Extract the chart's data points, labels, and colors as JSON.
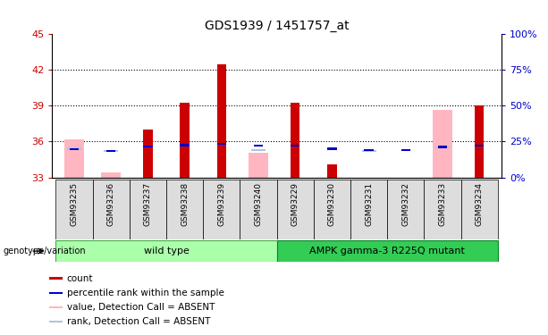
{
  "title": "GDS1939 / 1451757_at",
  "samples": [
    "GSM93235",
    "GSM93236",
    "GSM93237",
    "GSM93238",
    "GSM93239",
    "GSM93240",
    "GSM93229",
    "GSM93230",
    "GSM93231",
    "GSM93232",
    "GSM93233",
    "GSM93234"
  ],
  "count_values": [
    33.0,
    33.0,
    37.0,
    39.2,
    42.4,
    33.0,
    39.2,
    34.1,
    33.0,
    33.0,
    33.0,
    39.0
  ],
  "rank_values": [
    35.35,
    35.2,
    35.6,
    35.7,
    35.8,
    35.65,
    35.65,
    35.4,
    35.3,
    35.3,
    35.55,
    35.65
  ],
  "absent_value_values": [
    36.2,
    33.4,
    33.0,
    33.0,
    33.0,
    35.1,
    33.0,
    33.0,
    33.0,
    33.0,
    38.6,
    33.0
  ],
  "absent_rank_values": [
    35.4,
    35.2,
    0,
    0,
    0,
    35.3,
    0,
    0,
    35.2,
    0,
    35.5,
    0
  ],
  "ymin": 33,
  "ymax": 45,
  "yticks": [
    33,
    36,
    39,
    42,
    45
  ],
  "y2ticks_vals": [
    33,
    36,
    39,
    42,
    45
  ],
  "y2ticklabels": [
    "0%",
    "25%",
    "50%",
    "75%",
    "100%"
  ],
  "bar_color_count": "#CC0000",
  "bar_color_rank": "#0000CC",
  "bar_color_absent_value": "#FFB6C1",
  "bar_color_absent_rank": "#B0C4DE",
  "axis_color_left": "#CC0000",
  "axis_color_right": "#0000CC",
  "group1_label": "wild type",
  "group2_label": "AMPK gamma-3 R225Q mutant",
  "group1_color": "#AAFFAA",
  "group2_color": "#33CC55",
  "group1_indices": [
    0,
    5
  ],
  "group2_indices": [
    6,
    11
  ]
}
